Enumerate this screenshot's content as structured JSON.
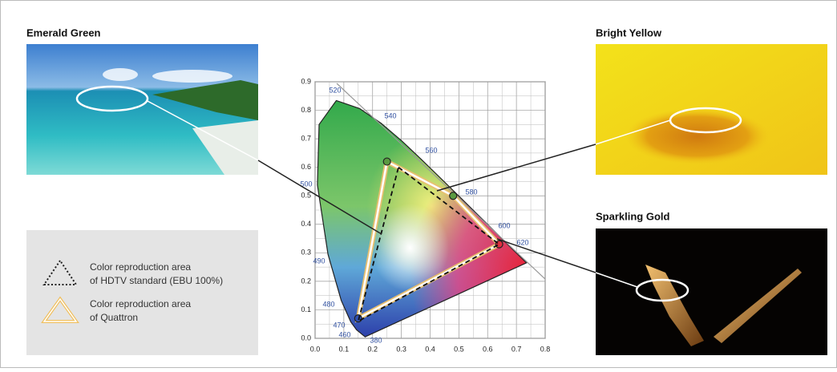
{
  "photos": [
    {
      "label": "Emerald Green"
    },
    {
      "label": "Bright Yellow"
    },
    {
      "label": "Sparkling Gold"
    }
  ],
  "chart_data": {
    "type": "chromaticity",
    "xlim": [
      0,
      0.8
    ],
    "ylim": [
      0,
      0.9
    ],
    "xticks": [
      {
        "value": 0,
        "label": "0.0"
      },
      0.1,
      0.2,
      0.3,
      0.4,
      0.5,
      0.6,
      0.7,
      0.8
    ],
    "yticks": [
      {
        "value": 0,
        "label": "0.0"
      },
      0.1,
      0.2,
      0.3,
      0.4,
      0.5,
      0.6,
      0.7,
      0.8,
      0.9
    ],
    "grid": true,
    "wavelengths": [
      520,
      540,
      560,
      580,
      600,
      620,
      500,
      490,
      480,
      470,
      460,
      380
    ],
    "gamuts": [
      {
        "label": [
          "Color reproduction area",
          "of HDTV standard (EBU 100%)"
        ],
        "color": "#111111",
        "style": "dashed",
        "x": [
          0.29,
          0.64,
          0.15
        ],
        "y": [
          0.6,
          0.33,
          0.06
        ]
      },
      {
        "label": [
          "Color reproduction area",
          "of Quattron"
        ],
        "color": "#e8c070",
        "style": "solid",
        "x": [
          0.25,
          0.48,
          0.64,
          0.15
        ],
        "y": [
          0.62,
          0.5,
          0.33,
          0.07
        ]
      }
    ]
  }
}
